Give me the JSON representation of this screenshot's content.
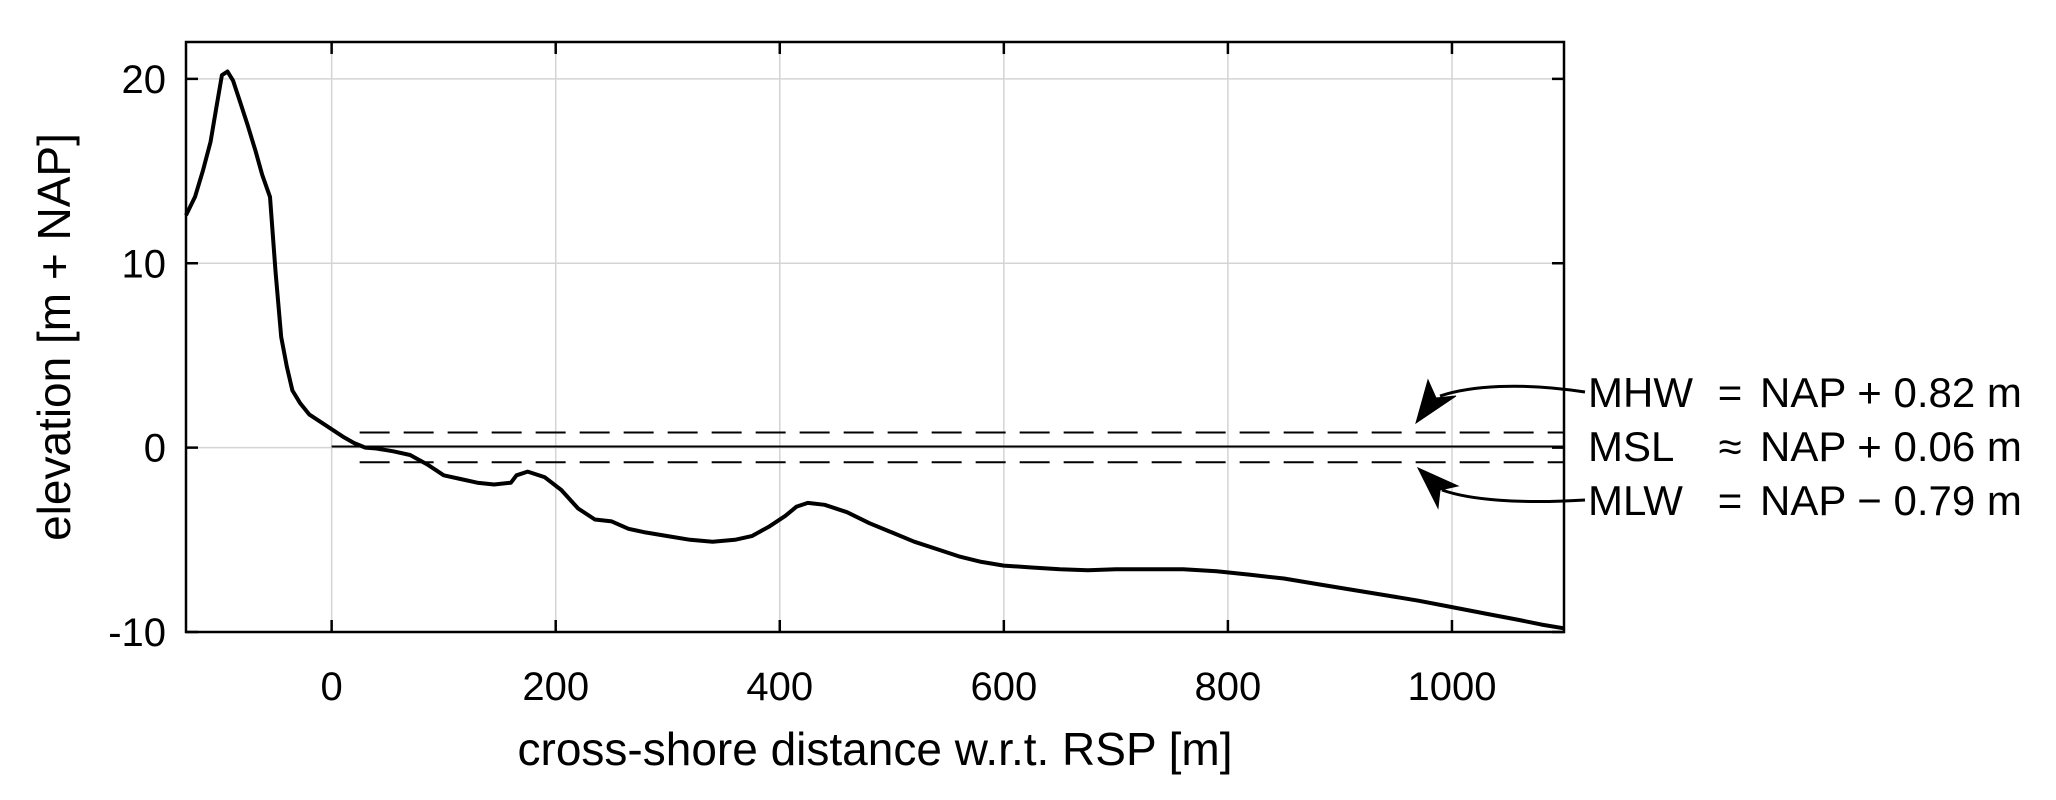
{
  "chart_data": {
    "type": "line",
    "xlabel": "cross-shore distance w.r.t. RSP [m]",
    "ylabel": "elevation [m + NAP]",
    "xlim": [
      -130,
      1100
    ],
    "ylim": [
      -10,
      22
    ],
    "xticks": [
      0,
      200,
      400,
      600,
      800,
      1000
    ],
    "yticks": [
      -10,
      0,
      10,
      20
    ],
    "xtick_labels": [
      "0",
      "200",
      "400",
      "600",
      "800",
      "1000"
    ],
    "ytick_labels": [
      "-10",
      "0",
      "10",
      "20"
    ],
    "grid": true,
    "series": [
      {
        "values": [
          [
            -130,
            12.6
          ],
          [
            -122,
            13.6
          ],
          [
            -115,
            15.0
          ],
          [
            -108,
            16.6
          ],
          [
            -103,
            18.4
          ],
          [
            -98,
            20.2
          ],
          [
            -93,
            20.4
          ],
          [
            -88,
            19.9
          ],
          [
            -82,
            18.8
          ],
          [
            -75,
            17.5
          ],
          [
            -68,
            16.1
          ],
          [
            -62,
            14.8
          ],
          [
            -55,
            13.6
          ],
          [
            -50,
            9.5
          ],
          [
            -45,
            6.0
          ],
          [
            -40,
            4.4
          ],
          [
            -35,
            3.1
          ],
          [
            -28,
            2.4
          ],
          [
            -20,
            1.8
          ],
          [
            -10,
            1.4
          ],
          [
            0,
            1.0
          ],
          [
            10,
            0.6
          ],
          [
            20,
            0.25
          ],
          [
            30,
            0.0
          ],
          [
            40,
            -0.05
          ],
          [
            55,
            -0.2
          ],
          [
            70,
            -0.4
          ],
          [
            85,
            -0.9
          ],
          [
            95,
            -1.3
          ],
          [
            100,
            -1.5
          ],
          [
            115,
            -1.7
          ],
          [
            130,
            -1.9
          ],
          [
            145,
            -2.0
          ],
          [
            160,
            -1.9
          ],
          [
            165,
            -1.5
          ],
          [
            175,
            -1.3
          ],
          [
            190,
            -1.6
          ],
          [
            205,
            -2.3
          ],
          [
            220,
            -3.3
          ],
          [
            235,
            -3.9
          ],
          [
            250,
            -4.0
          ],
          [
            265,
            -4.4
          ],
          [
            280,
            -4.6
          ],
          [
            300,
            -4.8
          ],
          [
            320,
            -5.0
          ],
          [
            340,
            -5.1
          ],
          [
            360,
            -5.0
          ],
          [
            375,
            -4.8
          ],
          [
            390,
            -4.3
          ],
          [
            405,
            -3.7
          ],
          [
            415,
            -3.2
          ],
          [
            425,
            -3.0
          ],
          [
            440,
            -3.1
          ],
          [
            460,
            -3.5
          ],
          [
            480,
            -4.1
          ],
          [
            500,
            -4.6
          ],
          [
            520,
            -5.1
          ],
          [
            540,
            -5.5
          ],
          [
            560,
            -5.9
          ],
          [
            580,
            -6.2
          ],
          [
            600,
            -6.4
          ],
          [
            625,
            -6.5
          ],
          [
            650,
            -6.6
          ],
          [
            675,
            -6.65
          ],
          [
            700,
            -6.6
          ],
          [
            730,
            -6.6
          ],
          [
            760,
            -6.6
          ],
          [
            790,
            -6.7
          ],
          [
            820,
            -6.9
          ],
          [
            850,
            -7.1
          ],
          [
            880,
            -7.4
          ],
          [
            910,
            -7.7
          ],
          [
            940,
            -8.0
          ],
          [
            970,
            -8.3
          ],
          [
            1000,
            -8.65
          ],
          [
            1030,
            -9.0
          ],
          [
            1060,
            -9.35
          ],
          [
            1080,
            -9.6
          ],
          [
            1100,
            -9.8
          ]
        ]
      }
    ],
    "reference_lines": [
      {
        "label": "MHW",
        "relation": "=",
        "text": "NAP + 0.82 m",
        "y": 0.82,
        "style": "dashed"
      },
      {
        "label": "MSL",
        "relation": "≈",
        "text": "NAP + 0.06 m",
        "y": 0.06,
        "style": "solid"
      },
      {
        "label": "MLW",
        "relation": "=",
        "text": "NAP − 0.79 m",
        "y": -0.79,
        "style": "dashed"
      }
    ]
  }
}
